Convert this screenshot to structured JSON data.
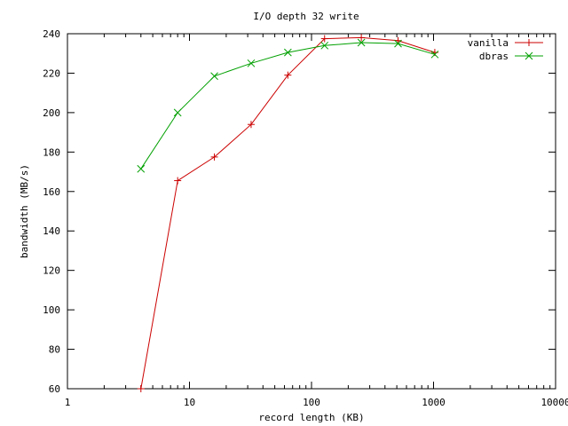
{
  "chart_data": {
    "type": "line",
    "title": "I/O depth 32 write",
    "xlabel": "record length (KB)",
    "ylabel": "bandwidth (MB/s)",
    "x_scale": "log",
    "xlim": [
      1,
      10000
    ],
    "ylim": [
      60,
      240
    ],
    "x_ticks": [
      1,
      10,
      100,
      1000,
      10000
    ],
    "x_tick_labels": [
      "1",
      "10",
      "100",
      "1000",
      "10000"
    ],
    "y_ticks": [
      60,
      80,
      100,
      120,
      140,
      160,
      180,
      200,
      220,
      240
    ],
    "y_tick_labels": [
      "60",
      "80",
      "100",
      "120",
      "140",
      "160",
      "180",
      "200",
      "220",
      "240"
    ],
    "grid": false,
    "legend_position": "top-right",
    "x": [
      4,
      8,
      16,
      32,
      64,
      128,
      256,
      512,
      1024
    ],
    "series": [
      {
        "name": "vanilla",
        "color": "#cc0000",
        "marker": "plus",
        "values": [
          60,
          165.5,
          177.5,
          194,
          219,
          237.5,
          238,
          236.5,
          230.5
        ]
      },
      {
        "name": "dbras",
        "color": "#00a000",
        "marker": "x",
        "values": [
          171.5,
          200,
          218.5,
          225,
          230.5,
          234,
          235.5,
          235,
          229.5
        ]
      }
    ]
  }
}
